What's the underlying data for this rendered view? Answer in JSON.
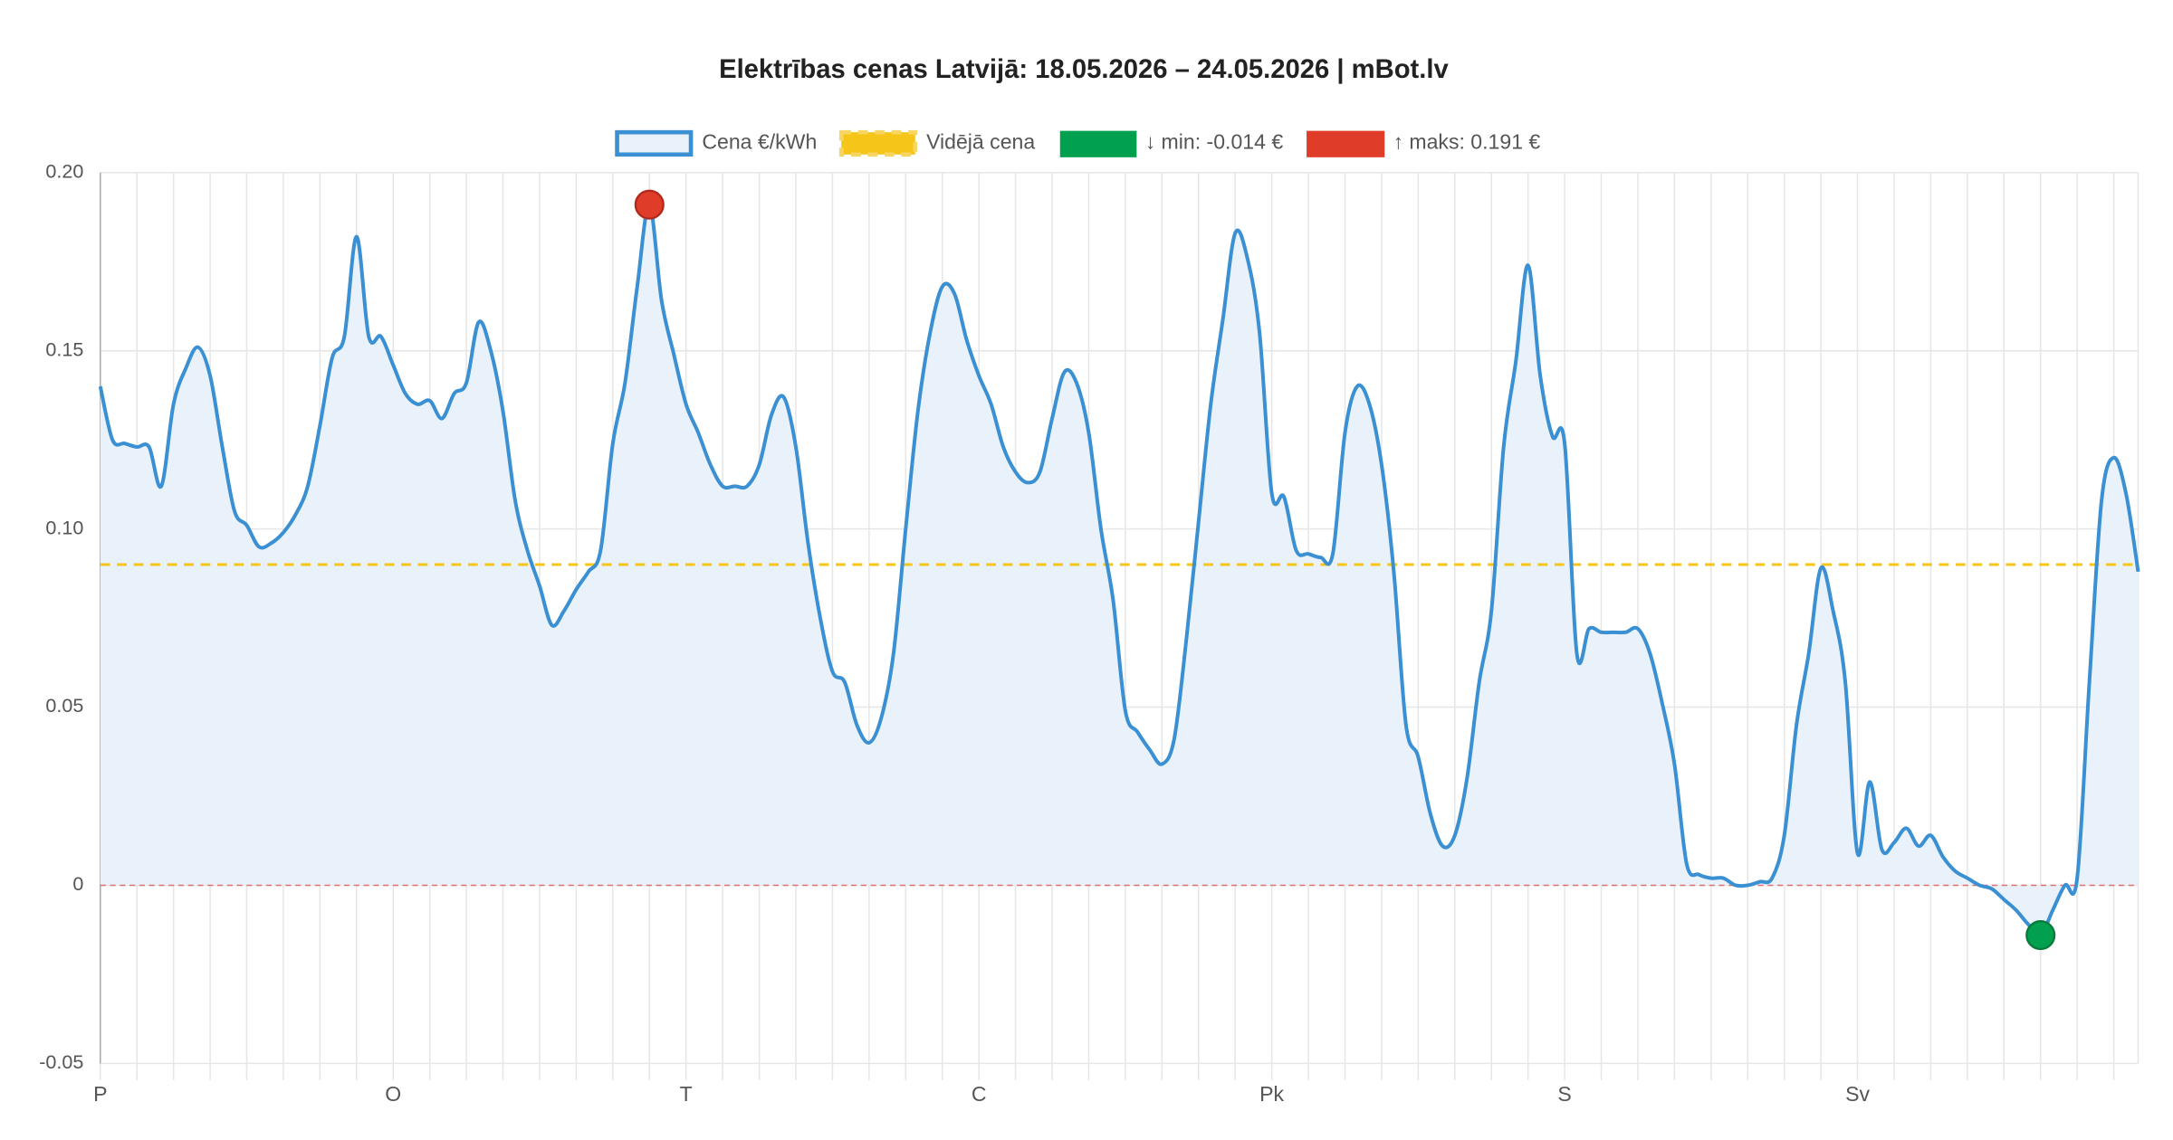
{
  "chart_data": {
    "type": "line",
    "title": "Elektrības cenas Latvijā: 18.05.2026 – 24.05.2026 | mBot.lv",
    "categories": [
      "P",
      null,
      null,
      null,
      null,
      null,
      null,
      null,
      null,
      null,
      null,
      null,
      null,
      null,
      null,
      null,
      null,
      null,
      null,
      null,
      null,
      null,
      null,
      null,
      "O",
      null,
      null,
      null,
      null,
      null,
      null,
      null,
      null,
      null,
      null,
      null,
      null,
      null,
      null,
      null,
      null,
      null,
      null,
      null,
      null,
      null,
      null,
      null,
      "T",
      null,
      null,
      null,
      null,
      null,
      null,
      null,
      null,
      null,
      null,
      null,
      null,
      null,
      null,
      null,
      null,
      null,
      null,
      null,
      null,
      null,
      null,
      null,
      "C",
      null,
      null,
      null,
      null,
      null,
      null,
      null,
      null,
      null,
      null,
      null,
      null,
      null,
      null,
      null,
      null,
      null,
      null,
      null,
      null,
      null,
      null,
      null,
      "Pk",
      null,
      null,
      null,
      null,
      null,
      null,
      null,
      null,
      null,
      null,
      null,
      null,
      null,
      null,
      null,
      null,
      null,
      null,
      null,
      null,
      null,
      null,
      null,
      "S",
      null,
      null,
      null,
      null,
      null,
      null,
      null,
      null,
      null,
      null,
      null,
      null,
      null,
      null,
      null,
      null,
      null,
      null,
      null,
      null,
      null,
      null,
      null,
      "Sv",
      null,
      null,
      null,
      null,
      null,
      null,
      null,
      null,
      null,
      null,
      null,
      null,
      null,
      null,
      null,
      null,
      null,
      null,
      null,
      null,
      null,
      null,
      null
    ],
    "series": [
      {
        "name": "Cena €/kWh",
        "color": "#3a90d2",
        "fill": "#e9f2fa",
        "values": [
          0.14,
          0.125,
          0.124,
          0.123,
          0.123,
          0.112,
          0.135,
          0.145,
          0.151,
          0.143,
          0.123,
          0.105,
          0.101,
          0.095,
          0.096,
          0.099,
          0.104,
          0.112,
          0.129,
          0.148,
          0.154,
          0.182,
          0.154,
          0.154,
          0.146,
          0.138,
          0.135,
          0.136,
          0.131,
          0.138,
          0.141,
          0.158,
          0.15,
          0.133,
          0.108,
          0.094,
          0.084,
          0.073,
          0.077,
          0.083,
          0.088,
          0.094,
          0.124,
          0.141,
          0.168,
          0.191,
          0.164,
          0.149,
          0.135,
          0.127,
          0.118,
          0.112,
          0.112,
          0.112,
          0.118,
          0.132,
          0.137,
          0.123,
          0.096,
          0.075,
          0.06,
          0.057,
          0.045,
          0.04,
          0.047,
          0.065,
          0.1,
          0.133,
          0.155,
          0.168,
          0.166,
          0.153,
          0.143,
          0.135,
          0.123,
          0.116,
          0.113,
          0.116,
          0.131,
          0.144,
          0.141,
          0.127,
          0.1,
          0.08,
          0.049,
          0.043,
          0.038,
          0.034,
          0.041,
          0.069,
          0.102,
          0.135,
          0.159,
          0.183,
          0.176,
          0.155,
          0.11,
          0.109,
          0.094,
          0.093,
          0.092,
          0.093,
          0.127,
          0.14,
          0.135,
          0.118,
          0.088,
          0.045,
          0.036,
          0.02,
          0.011,
          0.014,
          0.03,
          0.057,
          0.077,
          0.123,
          0.147,
          0.174,
          0.143,
          0.126,
          0.124,
          0.065,
          0.072,
          0.071,
          0.071,
          0.071,
          0.072,
          0.065,
          0.051,
          0.034,
          0.006,
          0.003,
          0.002,
          0.002,
          0.0,
          0.0,
          0.001,
          0.002,
          0.014,
          0.045,
          0.065,
          0.089,
          0.077,
          0.057,
          0.009,
          0.029,
          0.01,
          0.012,
          0.016,
          0.011,
          0.014,
          0.008,
          0.004,
          0.002,
          0.0,
          -0.001,
          -0.004,
          -0.007,
          -0.011,
          -0.014,
          -0.007,
          0.0,
          0.002,
          0.057,
          0.108,
          0.12,
          0.11,
          0.088
        ]
      }
    ],
    "average": {
      "name": "Vidējā cena",
      "value": 0.09,
      "color": "#f5c518"
    },
    "min_marker": {
      "name": "↓ min: -0.014 €",
      "color": "#00a04f"
    },
    "max_marker": {
      "name": "↑ maks: 0.191 €",
      "color": "#e03c2a"
    },
    "zero_line_color": "#d9534f",
    "ylim": [
      -0.05,
      0.2
    ],
    "yticks": [
      -0.05,
      0,
      0.05,
      {
        "value": 0.1,
        "label": "0.10"
      },
      0.15,
      {
        "value": 0.2,
        "label": "0.20"
      }
    ],
    "grid": true
  }
}
